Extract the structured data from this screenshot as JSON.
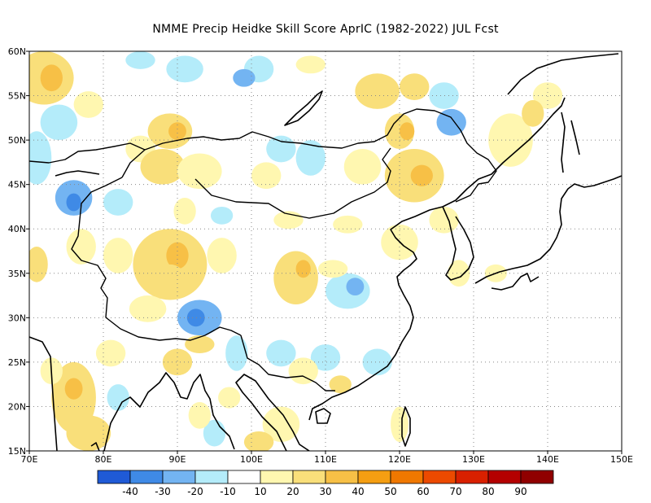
{
  "title": "NMME Precip Heidke Skill Score AprIC (1982-2022) JUL Fcst",
  "map": {
    "lon_range": [
      70,
      150
    ],
    "lat_range": [
      15,
      60
    ],
    "lon_ticks": [
      "70E",
      "80E",
      "90E",
      "100E",
      "110E",
      "120E",
      "130E",
      "140E",
      "150E"
    ],
    "lat_ticks": [
      "15N",
      "20N",
      "25N",
      "30N",
      "35N",
      "40N",
      "45N",
      "50N",
      "55N",
      "60N"
    ]
  },
  "colorbar": {
    "colors": [
      "#1f5ad6",
      "#3f8ae6",
      "#73b4f2",
      "#b4ecfa",
      "#ffffff",
      "#fff7b0",
      "#f9df7a",
      "#f7c046",
      "#f59e12",
      "#f07800",
      "#ec4a00",
      "#d92000",
      "#b40000",
      "#900000"
    ],
    "labels": [
      "-40",
      "-30",
      "-20",
      "-10",
      "10",
      "20",
      "30",
      "40",
      "50",
      "60",
      "70",
      "80",
      "90"
    ]
  },
  "skill_patches": [
    {
      "lon": 72,
      "lat": 57,
      "rx": 4,
      "ry": 3,
      "color": "#f9df7a"
    },
    {
      "lon": 73,
      "lat": 57,
      "rx": 1.5,
      "ry": 1.5,
      "color": "#f7c046"
    },
    {
      "lon": 78,
      "lat": 54,
      "rx": 2,
      "ry": 1.5,
      "color": "#fff7b0"
    },
    {
      "lon": 74,
      "lat": 52,
      "rx": 2.5,
      "ry": 2,
      "color": "#b4ecfa"
    },
    {
      "lon": 71,
      "lat": 48,
      "rx": 2,
      "ry": 3,
      "color": "#b4ecfa"
    },
    {
      "lon": 76,
      "lat": 43.5,
      "rx": 2.5,
      "ry": 2,
      "color": "#73b4f2"
    },
    {
      "lon": 76,
      "lat": 43,
      "rx": 1,
      "ry": 1,
      "color": "#3f8ae6"
    },
    {
      "lon": 85,
      "lat": 59,
      "rx": 2,
      "ry": 1,
      "color": "#b4ecfa"
    },
    {
      "lon": 91,
      "lat": 58,
      "rx": 2.5,
      "ry": 1.5,
      "color": "#b4ecfa"
    },
    {
      "lon": 101,
      "lat": 58,
      "rx": 2,
      "ry": 1.5,
      "color": "#b4ecfa"
    },
    {
      "lon": 99,
      "lat": 57,
      "rx": 1.5,
      "ry": 1,
      "color": "#73b4f2"
    },
    {
      "lon": 108,
      "lat": 58.5,
      "rx": 2,
      "ry": 1,
      "color": "#fff7b0"
    },
    {
      "lon": 117,
      "lat": 55.5,
      "rx": 3,
      "ry": 2,
      "color": "#f9df7a"
    },
    {
      "lon": 122,
      "lat": 56,
      "rx": 2,
      "ry": 1.5,
      "color": "#f9df7a"
    },
    {
      "lon": 126,
      "lat": 55,
      "rx": 2,
      "ry": 1.5,
      "color": "#b4ecfa"
    },
    {
      "lon": 127,
      "lat": 52,
      "rx": 2,
      "ry": 1.5,
      "color": "#73b4f2"
    },
    {
      "lon": 120,
      "lat": 51,
      "rx": 2,
      "ry": 2,
      "color": "#f9df7a"
    },
    {
      "lon": 121,
      "lat": 51,
      "rx": 1,
      "ry": 1,
      "color": "#f7c046"
    },
    {
      "lon": 89,
      "lat": 51,
      "rx": 3,
      "ry": 2,
      "color": "#f9df7a"
    },
    {
      "lon": 90,
      "lat": 51,
      "rx": 1.2,
      "ry": 1,
      "color": "#f7c046"
    },
    {
      "lon": 85,
      "lat": 49,
      "rx": 2,
      "ry": 1.5,
      "color": "#fff7b0"
    },
    {
      "lon": 88,
      "lat": 47,
      "rx": 3,
      "ry": 2,
      "color": "#f9df7a"
    },
    {
      "lon": 93,
      "lat": 46.5,
      "rx": 3,
      "ry": 2,
      "color": "#fff7b0"
    },
    {
      "lon": 104,
      "lat": 49,
      "rx": 2,
      "ry": 1.5,
      "color": "#b4ecfa"
    },
    {
      "lon": 108,
      "lat": 48,
      "rx": 2,
      "ry": 2,
      "color": "#b4ecfa"
    },
    {
      "lon": 102,
      "lat": 46,
      "rx": 2,
      "ry": 1.5,
      "color": "#fff7b0"
    },
    {
      "lon": 115,
      "lat": 47,
      "rx": 2.5,
      "ry": 2,
      "color": "#fff7b0"
    },
    {
      "lon": 122,
      "lat": 46,
      "rx": 4,
      "ry": 3,
      "color": "#f9df7a"
    },
    {
      "lon": 123,
      "lat": 46,
      "rx": 1.5,
      "ry": 1.2,
      "color": "#f7c046"
    },
    {
      "lon": 135,
      "lat": 50,
      "rx": 3,
      "ry": 3,
      "color": "#fff7b0"
    },
    {
      "lon": 140,
      "lat": 55,
      "rx": 2,
      "ry": 1.5,
      "color": "#fff7b0"
    },
    {
      "lon": 138,
      "lat": 53,
      "rx": 1.5,
      "ry": 1.5,
      "color": "#f9df7a"
    },
    {
      "lon": 82,
      "lat": 43,
      "rx": 2,
      "ry": 1.5,
      "color": "#b4ecfa"
    },
    {
      "lon": 91,
      "lat": 42,
      "rx": 1.5,
      "ry": 1.5,
      "color": "#fff7b0"
    },
    {
      "lon": 96,
      "lat": 41.5,
      "rx": 1.5,
      "ry": 1,
      "color": "#b4ecfa"
    },
    {
      "lon": 105,
      "lat": 41,
      "rx": 2,
      "ry": 1,
      "color": "#fff7b0"
    },
    {
      "lon": 113,
      "lat": 40.5,
      "rx": 2,
      "ry": 1,
      "color": "#fff7b0"
    },
    {
      "lon": 120,
      "lat": 38.5,
      "rx": 2.5,
      "ry": 2,
      "color": "#fff7b0"
    },
    {
      "lon": 126,
      "lat": 41,
      "rx": 2,
      "ry": 1.5,
      "color": "#fff7b0"
    },
    {
      "lon": 71,
      "lat": 36,
      "rx": 1.5,
      "ry": 2,
      "color": "#f9df7a"
    },
    {
      "lon": 77,
      "lat": 38,
      "rx": 2,
      "ry": 2,
      "color": "#fff7b0"
    },
    {
      "lon": 82,
      "lat": 37,
      "rx": 2,
      "ry": 2,
      "color": "#fff7b0"
    },
    {
      "lon": 89,
      "lat": 36,
      "rx": 5,
      "ry": 4,
      "color": "#f9df7a"
    },
    {
      "lon": 90,
      "lat": 37,
      "rx": 1.5,
      "ry": 1.5,
      "color": "#f7c046"
    },
    {
      "lon": 89,
      "lat": 34.5,
      "rx": 2,
      "ry": 1.5,
      "color": "#f9df7a"
    },
    {
      "lon": 96,
      "lat": 37,
      "rx": 2,
      "ry": 2,
      "color": "#fff7b0"
    },
    {
      "lon": 106,
      "lat": 34.5,
      "rx": 3,
      "ry": 3,
      "color": "#f9df7a"
    },
    {
      "lon": 107,
      "lat": 35.5,
      "rx": 1,
      "ry": 1,
      "color": "#f7c046"
    },
    {
      "lon": 113,
      "lat": 33,
      "rx": 3,
      "ry": 2,
      "color": "#b4ecfa"
    },
    {
      "lon": 114,
      "lat": 33.5,
      "rx": 1.2,
      "ry": 1,
      "color": "#73b4f2"
    },
    {
      "lon": 111,
      "lat": 35.5,
      "rx": 2,
      "ry": 1,
      "color": "#fff7b0"
    },
    {
      "lon": 93,
      "lat": 30,
      "rx": 3,
      "ry": 2,
      "color": "#73b4f2"
    },
    {
      "lon": 92.5,
      "lat": 30,
      "rx": 1.2,
      "ry": 1,
      "color": "#3f8ae6"
    },
    {
      "lon": 86,
      "lat": 31,
      "rx": 2.5,
      "ry": 1.5,
      "color": "#fff7b0"
    },
    {
      "lon": 98,
      "lat": 26,
      "rx": 1.5,
      "ry": 2,
      "color": "#b4ecfa"
    },
    {
      "lon": 104,
      "lat": 26,
      "rx": 2,
      "ry": 1.5,
      "color": "#b4ecfa"
    },
    {
      "lon": 110,
      "lat": 25.5,
      "rx": 2,
      "ry": 1.5,
      "color": "#b4ecfa"
    },
    {
      "lon": 117,
      "lat": 25,
      "rx": 2,
      "ry": 1.5,
      "color": "#b4ecfa"
    },
    {
      "lon": 107,
      "lat": 24,
      "rx": 2,
      "ry": 1.5,
      "color": "#fff7b0"
    },
    {
      "lon": 112,
      "lat": 22.5,
      "rx": 1.5,
      "ry": 1,
      "color": "#f9df7a"
    },
    {
      "lon": 76,
      "lat": 21,
      "rx": 3,
      "ry": 4,
      "color": "#f9df7a"
    },
    {
      "lon": 76,
      "lat": 22,
      "rx": 1.2,
      "ry": 1.2,
      "color": "#f7c046"
    },
    {
      "lon": 78,
      "lat": 17,
      "rx": 3,
      "ry": 2,
      "color": "#f9df7a"
    },
    {
      "lon": 73,
      "lat": 24,
      "rx": 1.5,
      "ry": 1.5,
      "color": "#fff7b0"
    },
    {
      "lon": 81,
      "lat": 26,
      "rx": 2,
      "ry": 1.5,
      "color": "#fff7b0"
    },
    {
      "lon": 82,
      "lat": 21,
      "rx": 1.5,
      "ry": 1.5,
      "color": "#b4ecfa"
    },
    {
      "lon": 90,
      "lat": 25,
      "rx": 2,
      "ry": 1.5,
      "color": "#f9df7a"
    },
    {
      "lon": 93,
      "lat": 27,
      "rx": 2,
      "ry": 1,
      "color": "#f9df7a"
    },
    {
      "lon": 104,
      "lat": 18,
      "rx": 2.5,
      "ry": 2,
      "color": "#fff7b0"
    },
    {
      "lon": 101,
      "lat": 16,
      "rx": 2,
      "ry": 1.2,
      "color": "#f9df7a"
    },
    {
      "lon": 95,
      "lat": 17,
      "rx": 1.5,
      "ry": 1.5,
      "color": "#b4ecfa"
    },
    {
      "lon": 93,
      "lat": 19,
      "rx": 1.5,
      "ry": 1.5,
      "color": "#fff7b0"
    },
    {
      "lon": 97,
      "lat": 21,
      "rx": 1.5,
      "ry": 1.2,
      "color": "#fff7b0"
    },
    {
      "lon": 120,
      "lat": 18,
      "rx": 1.2,
      "ry": 2,
      "color": "#fff7b0"
    },
    {
      "lon": 128,
      "lat": 35,
      "rx": 1.5,
      "ry": 1.5,
      "color": "#fff7b0"
    },
    {
      "lon": 133,
      "lat": 35,
      "rx": 1.5,
      "ry": 1,
      "color": "#fff7b0"
    }
  ]
}
